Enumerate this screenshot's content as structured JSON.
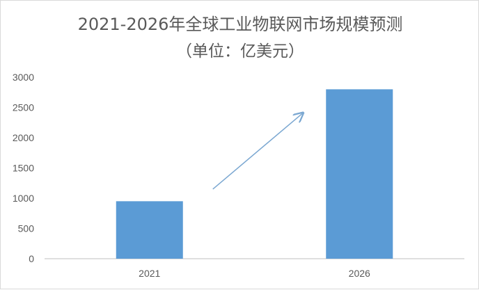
{
  "chart_data": {
    "type": "bar",
    "title": "2021-2026年全球工业物联网市场规模预测",
    "subtitle": "（单位：亿美元）",
    "categories": [
      "2021",
      "2026"
    ],
    "values": [
      950,
      2800
    ],
    "ylim": [
      0,
      3000
    ],
    "yticks": [
      0,
      500,
      1000,
      1500,
      2000,
      2500,
      3000
    ],
    "grid": false,
    "legend": "none",
    "bar_color": "#5b9bd5",
    "arrow_color": "#7aa7d1",
    "annotations": [
      {
        "type": "arrow",
        "from": {
          "category": "2021",
          "value": 1150
        },
        "to": {
          "category": "2026",
          "value": 2400
        },
        "meaning": "growth"
      }
    ]
  }
}
